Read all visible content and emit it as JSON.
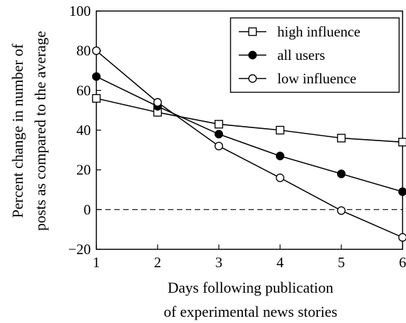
{
  "chart_data": {
    "type": "line",
    "title": "",
    "xlabel": [
      "Days following publication",
      "of experimental news stories"
    ],
    "ylabel": [
      "Percent change in number of",
      "posts as compared to the average"
    ],
    "xlim": [
      1,
      6
    ],
    "ylim": [
      -20,
      100
    ],
    "xticks": [
      1,
      2,
      3,
      4,
      5,
      6
    ],
    "yticks": [
      -20,
      0,
      20,
      40,
      60,
      80,
      100
    ],
    "ytick_labels": [
      "−20",
      "0",
      "20",
      "40",
      "60",
      "80",
      "100"
    ],
    "grid": false,
    "legend_position": "top-right",
    "reference_line": {
      "y": 0,
      "style": "dashed"
    },
    "x": [
      1,
      2,
      3,
      4,
      5,
      6
    ],
    "series": [
      {
        "name": "high influence",
        "marker": "open-square",
        "values": [
          56,
          49,
          43,
          40,
          36,
          34
        ]
      },
      {
        "name": "all users",
        "marker": "filled-circle",
        "values": [
          67,
          52,
          38,
          27,
          18,
          9
        ]
      },
      {
        "name": "low influence",
        "marker": "open-circle",
        "values": [
          80,
          54,
          32,
          16,
          -0.5,
          -14
        ]
      }
    ],
    "colors": {
      "line": "#000000",
      "marker_fill_open": "#ffffff",
      "marker_fill_solid": "#000000"
    }
  }
}
